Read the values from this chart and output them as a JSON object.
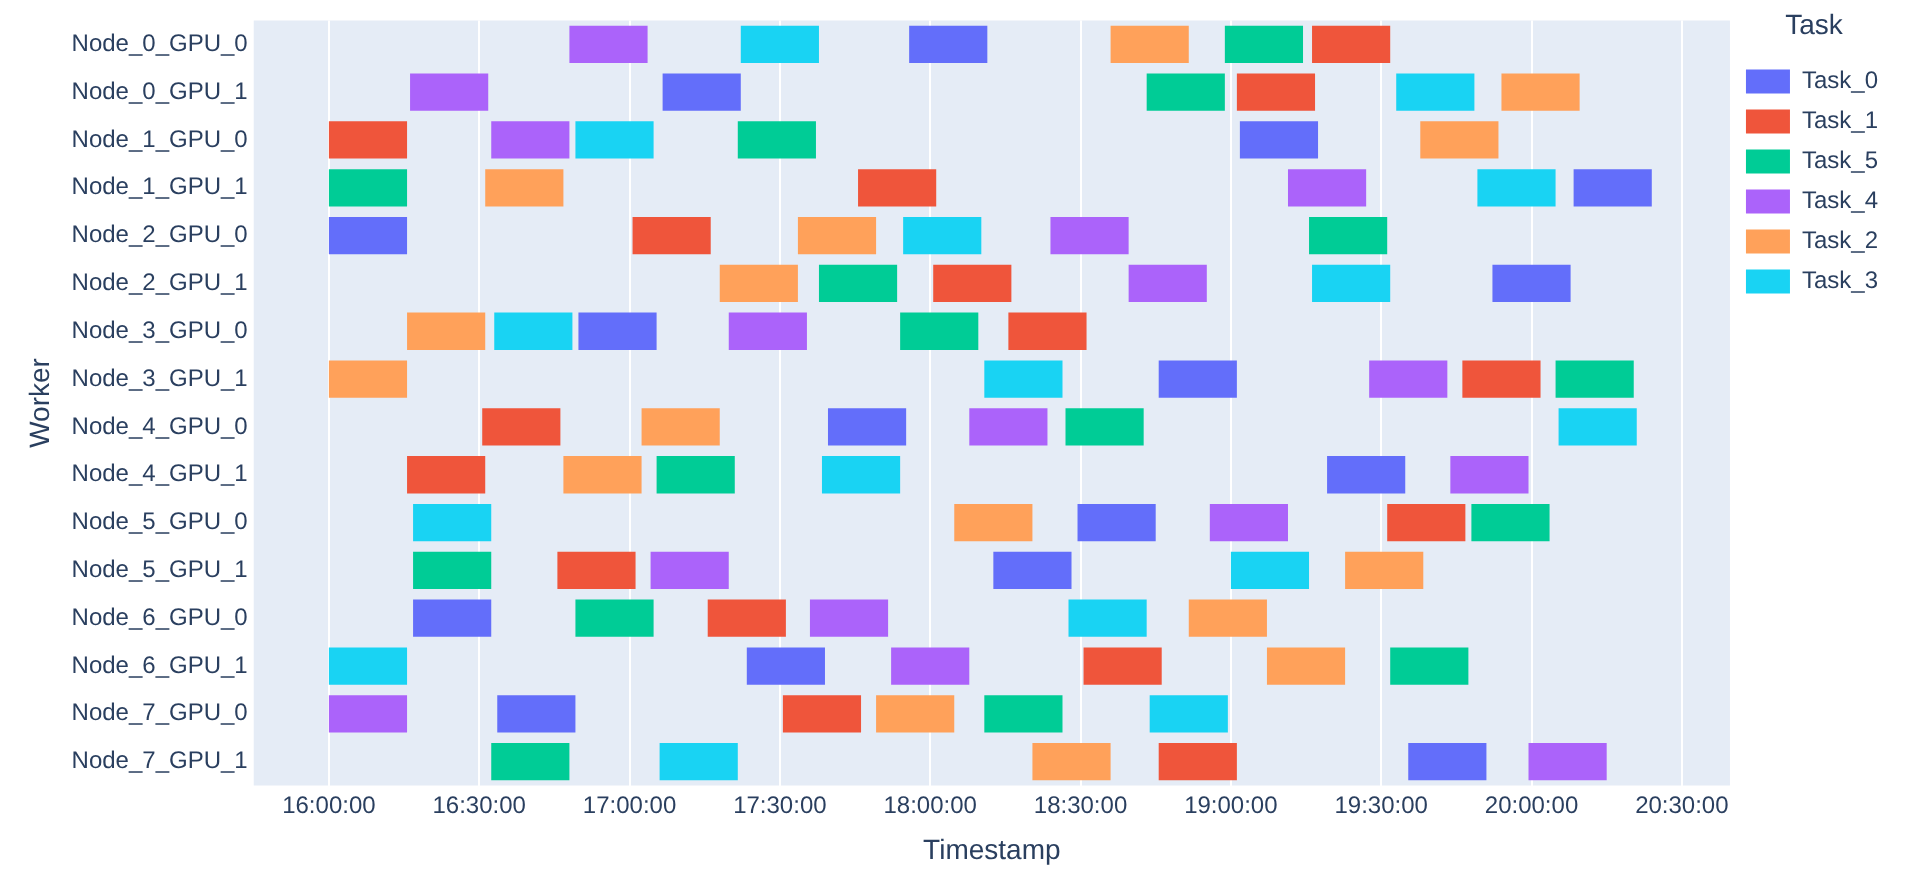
{
  "chart_data": {
    "type": "bar",
    "orientation": "horizontal",
    "xlabel": "Timestamp",
    "ylabel": "Worker",
    "legend_title": "Task",
    "legend": "right",
    "grid": "x",
    "categories": [
      "Node_0_GPU_0",
      "Node_0_GPU_1",
      "Node_1_GPU_0",
      "Node_1_GPU_1",
      "Node_2_GPU_0",
      "Node_2_GPU_1",
      "Node_3_GPU_0",
      "Node_3_GPU_1",
      "Node_4_GPU_0",
      "Node_4_GPU_1",
      "Node_5_GPU_0",
      "Node_5_GPU_1",
      "Node_6_GPU_0",
      "Node_6_GPU_1",
      "Node_7_GPU_0",
      "Node_7_GPU_1"
    ],
    "xlim": [
      15.75,
      20.66
    ],
    "xticks": [
      {
        "value": 16,
        "label": "16:00:00"
      },
      {
        "value": 16.5,
        "label": "16:30:00"
      },
      {
        "value": 17,
        "label": "17:00:00"
      },
      {
        "value": 17.5,
        "label": "17:30:00"
      },
      {
        "value": 18,
        "label": "18:00:00"
      },
      {
        "value": 18.5,
        "label": "18:30:00"
      },
      {
        "value": 19,
        "label": "19:00:00"
      },
      {
        "value": 19.5,
        "label": "19:30:00"
      },
      {
        "value": 20,
        "label": "20:00:00"
      },
      {
        "value": 20.5,
        "label": "20:30:00"
      }
    ],
    "series": [
      {
        "name": "Task_0",
        "color": "#636efa",
        "base": [
          17.93,
          17.11,
          19.03,
          20.14,
          16.0,
          19.87,
          16.83,
          18.76,
          17.66,
          19.32,
          18.49,
          18.21,
          16.28,
          17.39,
          16.56,
          19.59
        ],
        "values": [
          0.26,
          0.26,
          0.26,
          0.26,
          0.26,
          0.26,
          0.26,
          0.26,
          0.26,
          0.26,
          0.26,
          0.26,
          0.26,
          0.26,
          0.26,
          0.26
        ]
      },
      {
        "name": "Task_1",
        "color": "#ef553b",
        "base": [
          19.27,
          19.02,
          16.0,
          17.76,
          17.01,
          18.01,
          18.26,
          19.77,
          16.51,
          16.26,
          19.52,
          16.76,
          17.26,
          18.51,
          17.51,
          18.76
        ],
        "values": [
          0.26,
          0.26,
          0.26,
          0.26,
          0.26,
          0.26,
          0.26,
          0.26,
          0.26,
          0.26,
          0.26,
          0.26,
          0.26,
          0.26,
          0.26,
          0.26
        ]
      },
      {
        "name": "Task_5",
        "color": "#00cc96",
        "base": [
          18.98,
          18.72,
          17.36,
          16.0,
          19.26,
          17.63,
          17.9,
          20.08,
          18.45,
          17.09,
          19.8,
          16.28,
          16.82,
          19.53,
          18.18,
          16.54
        ],
        "values": [
          0.26,
          0.26,
          0.26,
          0.26,
          0.26,
          0.26,
          0.26,
          0.26,
          0.26,
          0.26,
          0.26,
          0.26,
          0.26,
          0.26,
          0.26,
          0.26
        ]
      },
      {
        "name": "Task_4",
        "color": "#ab63fa",
        "base": [
          16.8,
          16.27,
          16.54,
          19.19,
          18.4,
          18.66,
          17.33,
          19.46,
          18.13,
          19.73,
          18.93,
          17.07,
          17.6,
          17.87,
          16.0,
          19.99
        ],
        "values": [
          0.26,
          0.26,
          0.26,
          0.26,
          0.26,
          0.26,
          0.26,
          0.26,
          0.26,
          0.26,
          0.26,
          0.26,
          0.26,
          0.26,
          0.26,
          0.26
        ]
      },
      {
        "name": "Task_2",
        "color": "#ffa15a",
        "base": [
          18.6,
          19.9,
          19.63,
          16.52,
          17.56,
          17.3,
          16.26,
          16.0,
          17.04,
          16.78,
          18.08,
          19.38,
          18.86,
          19.12,
          17.82,
          18.34
        ],
        "values": [
          0.26,
          0.26,
          0.26,
          0.26,
          0.26,
          0.26,
          0.26,
          0.26,
          0.26,
          0.26,
          0.26,
          0.26,
          0.26,
          0.26,
          0.26,
          0.26
        ]
      },
      {
        "name": "Task_3",
        "color": "#19d3f3",
        "base": [
          17.37,
          19.55,
          16.82,
          19.82,
          17.91,
          19.27,
          16.55,
          18.18,
          20.09,
          17.64,
          16.28,
          19.0,
          18.46,
          16.0,
          18.73,
          17.1
        ],
        "values": [
          0.26,
          0.26,
          0.26,
          0.26,
          0.26,
          0.26,
          0.26,
          0.26,
          0.26,
          0.26,
          0.26,
          0.26,
          0.26,
          0.26,
          0.26,
          0.26
        ]
      }
    ]
  }
}
